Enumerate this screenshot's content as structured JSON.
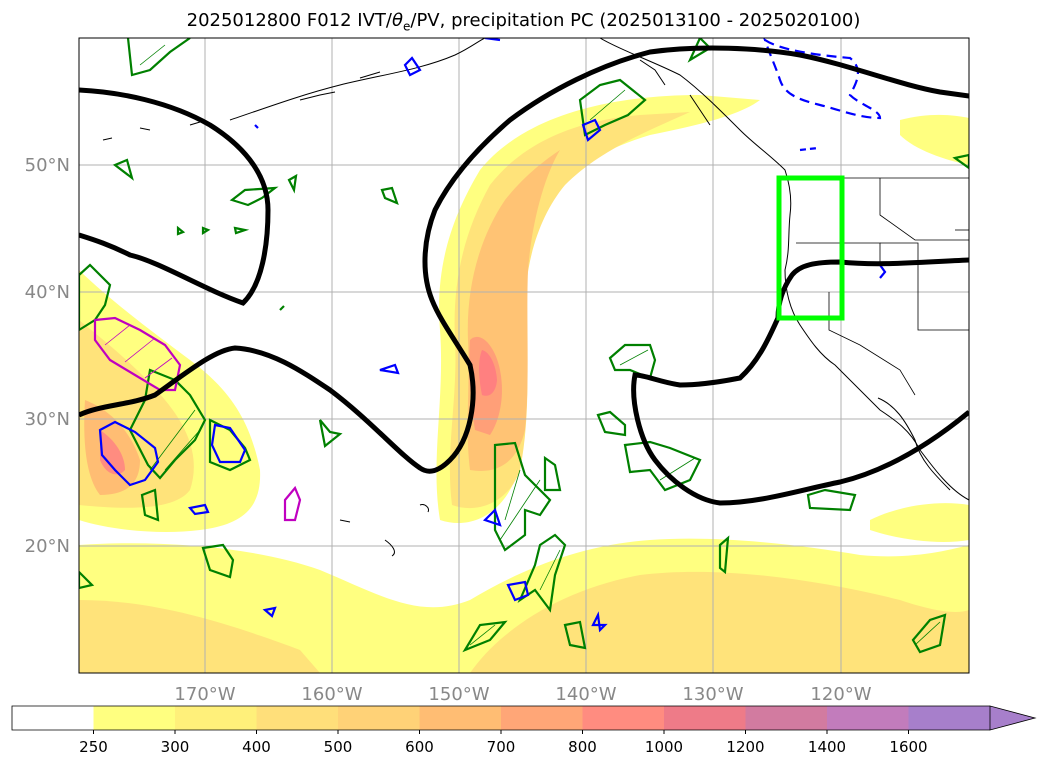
{
  "map": {
    "title_prefix": "2025012800 F012 IVT/",
    "title_theta": "θ",
    "title_sub": "e",
    "title_suffix": "/PV, precipitation PC (2025013100 - 2025020100)",
    "lon_labels": [
      "170°W",
      "160°W",
      "150°W",
      "140°W",
      "130°W",
      "120°W"
    ],
    "lat_labels": [
      "50°N",
      "40°N",
      "30°N",
      "20°N"
    ],
    "highlight_box": {
      "color": "#00ff00",
      "lon_range": [
        -125,
        -120
      ],
      "lat_range": [
        38,
        49
      ]
    }
  },
  "colorbar": {
    "levels": [
      "250",
      "300",
      "400",
      "500",
      "600",
      "700",
      "800",
      "1000",
      "1200",
      "1400",
      "1600"
    ],
    "colors": [
      "#ffffff",
      "#ffff80",
      "#fff07a",
      "#ffdf7a",
      "#ffd277",
      "#ffbd73",
      "#ffa677",
      "#ff8c80",
      "#ee7b88",
      "#d27ba0",
      "#c27cbc",
      "#a77fcb"
    ],
    "extend": "max"
  },
  "legend_colors": {
    "ivt_fill_low": "#ffff80",
    "ivt_fill_high": "#ff8080",
    "contour_black": "#000000",
    "contour_green": "#008000",
    "contour_blue": "#0000ff",
    "contour_magenta": "#c000c0"
  }
}
